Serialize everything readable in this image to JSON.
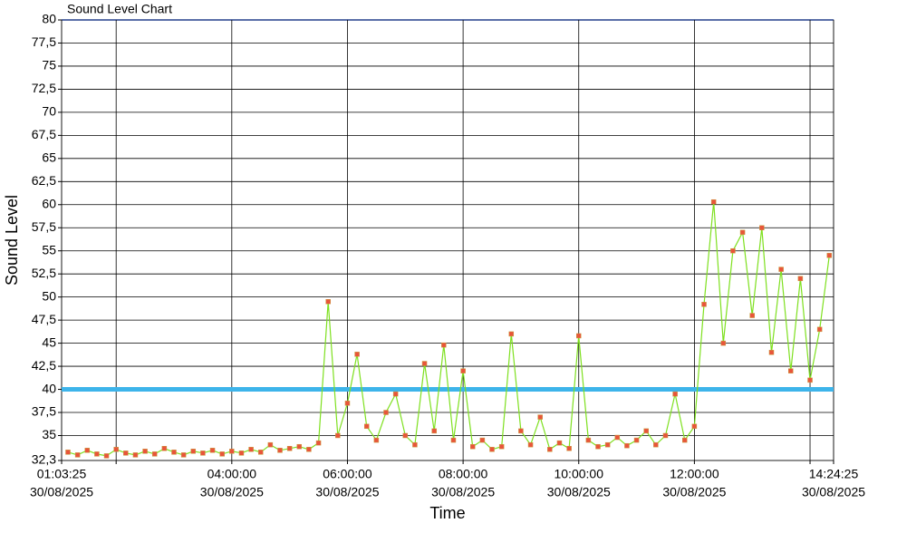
{
  "chart_data": {
    "type": "line",
    "title": "Sound Level Chart",
    "x_label": "Time",
    "y_label": "Sound Level",
    "x_date": "30/08/2025",
    "xlim": [
      "01:03:25",
      "14:24:25"
    ],
    "xticks": [
      "01:03:25",
      {
        "value": "02:00:00",
        "label": null
      },
      "04:00:00",
      "06:00:00",
      "08:00:00",
      "10:00:00",
      "12:00:00",
      {
        "value": "14:00:00",
        "label": null
      },
      "14:24:25"
    ],
    "ylim": [
      32.3,
      80
    ],
    "yticks": [
      {
        "value": 32.3,
        "label": "32,3"
      },
      35,
      {
        "value": 37.5,
        "label": "37,5"
      },
      40,
      {
        "value": 42.5,
        "label": "42,5"
      },
      45,
      {
        "value": 47.5,
        "label": "47,5"
      },
      50,
      {
        "value": 52.5,
        "label": "52,5"
      },
      55,
      {
        "value": 57.5,
        "label": "57,5"
      },
      60,
      {
        "value": 62.5,
        "label": "62,5"
      },
      65,
      {
        "value": 67.5,
        "label": "67,5"
      },
      70,
      {
        "value": 72.5,
        "label": "72,5"
      },
      75,
      {
        "value": 77.5,
        "label": "77,5"
      },
      80
    ],
    "grid": true,
    "threshold": 40,
    "threshold_color": "#3db4ea",
    "marker_color": "#e8553a",
    "x": [
      "01:10:00",
      "01:20:00",
      "01:30:00",
      "01:40:00",
      "01:50:00",
      "02:00:00",
      "02:10:00",
      "02:20:00",
      "02:30:00",
      "02:40:00",
      "02:50:00",
      "03:00:00",
      "03:10:00",
      "03:20:00",
      "03:30:00",
      "03:40:00",
      "03:50:00",
      "04:00:00",
      "04:10:00",
      "04:20:00",
      "04:30:00",
      "04:40:00",
      "04:50:00",
      "05:00:00",
      "05:10:00",
      "05:20:00",
      "05:30:00",
      "05:40:00",
      "05:50:00",
      "06:00:00",
      "06:10:00",
      "06:20:00",
      "06:30:00",
      "06:40:00",
      "06:50:00",
      "07:00:00",
      "07:10:00",
      "07:20:00",
      "07:30:00",
      "07:40:00",
      "07:50:00",
      "08:00:00",
      "08:10:00",
      "08:20:00",
      "08:30:00",
      "08:40:00",
      "08:50:00",
      "09:00:00",
      "09:10:00",
      "09:20:00",
      "09:30:00",
      "09:40:00",
      "09:50:00",
      "10:00:00",
      "10:10:00",
      "10:20:00",
      "10:30:00",
      "10:40:00",
      "10:50:00",
      "11:00:00",
      "11:10:00",
      "11:20:00",
      "11:30:00",
      "11:40:00",
      "11:50:00",
      "12:00:00",
      "12:10:00",
      "12:20:00",
      "12:30:00",
      "12:40:00",
      "12:50:00",
      "13:00:00",
      "13:10:00",
      "13:20:00",
      "13:30:00",
      "13:40:00",
      "13:50:00",
      "14:00:00",
      "14:10:00",
      "14:20:00"
    ],
    "series": [
      {
        "color": "#7ee01f",
        "values": [
          33.2,
          32.9,
          33.4,
          33.0,
          32.8,
          33.5,
          33.1,
          32.9,
          33.3,
          33.0,
          33.6,
          33.2,
          32.9,
          33.3,
          33.1,
          33.4,
          33.0,
          33.3,
          33.1,
          33.5,
          33.2,
          34.0,
          33.4,
          33.6,
          33.8,
          33.5,
          34.2,
          49.5,
          35.0,
          38.5,
          43.8,
          36.0,
          34.5,
          37.5,
          39.5,
          35.0,
          34.0,
          42.8,
          35.5,
          44.8,
          34.5,
          42.0,
          33.8,
          34.5,
          33.5,
          33.8,
          46.0,
          35.5,
          34.0,
          37.0,
          33.5,
          34.2,
          33.6,
          45.8,
          34.5,
          33.8,
          34.0,
          34.8,
          33.9,
          34.5,
          35.5,
          34.0,
          35.0,
          39.5,
          34.5,
          36.0,
          49.2,
          60.3,
          45.0,
          55.0,
          57.0,
          48.0,
          57.5,
          44.0,
          53.0,
          42.0,
          52.0,
          41.0,
          46.5,
          54.5
        ]
      }
    ]
  }
}
